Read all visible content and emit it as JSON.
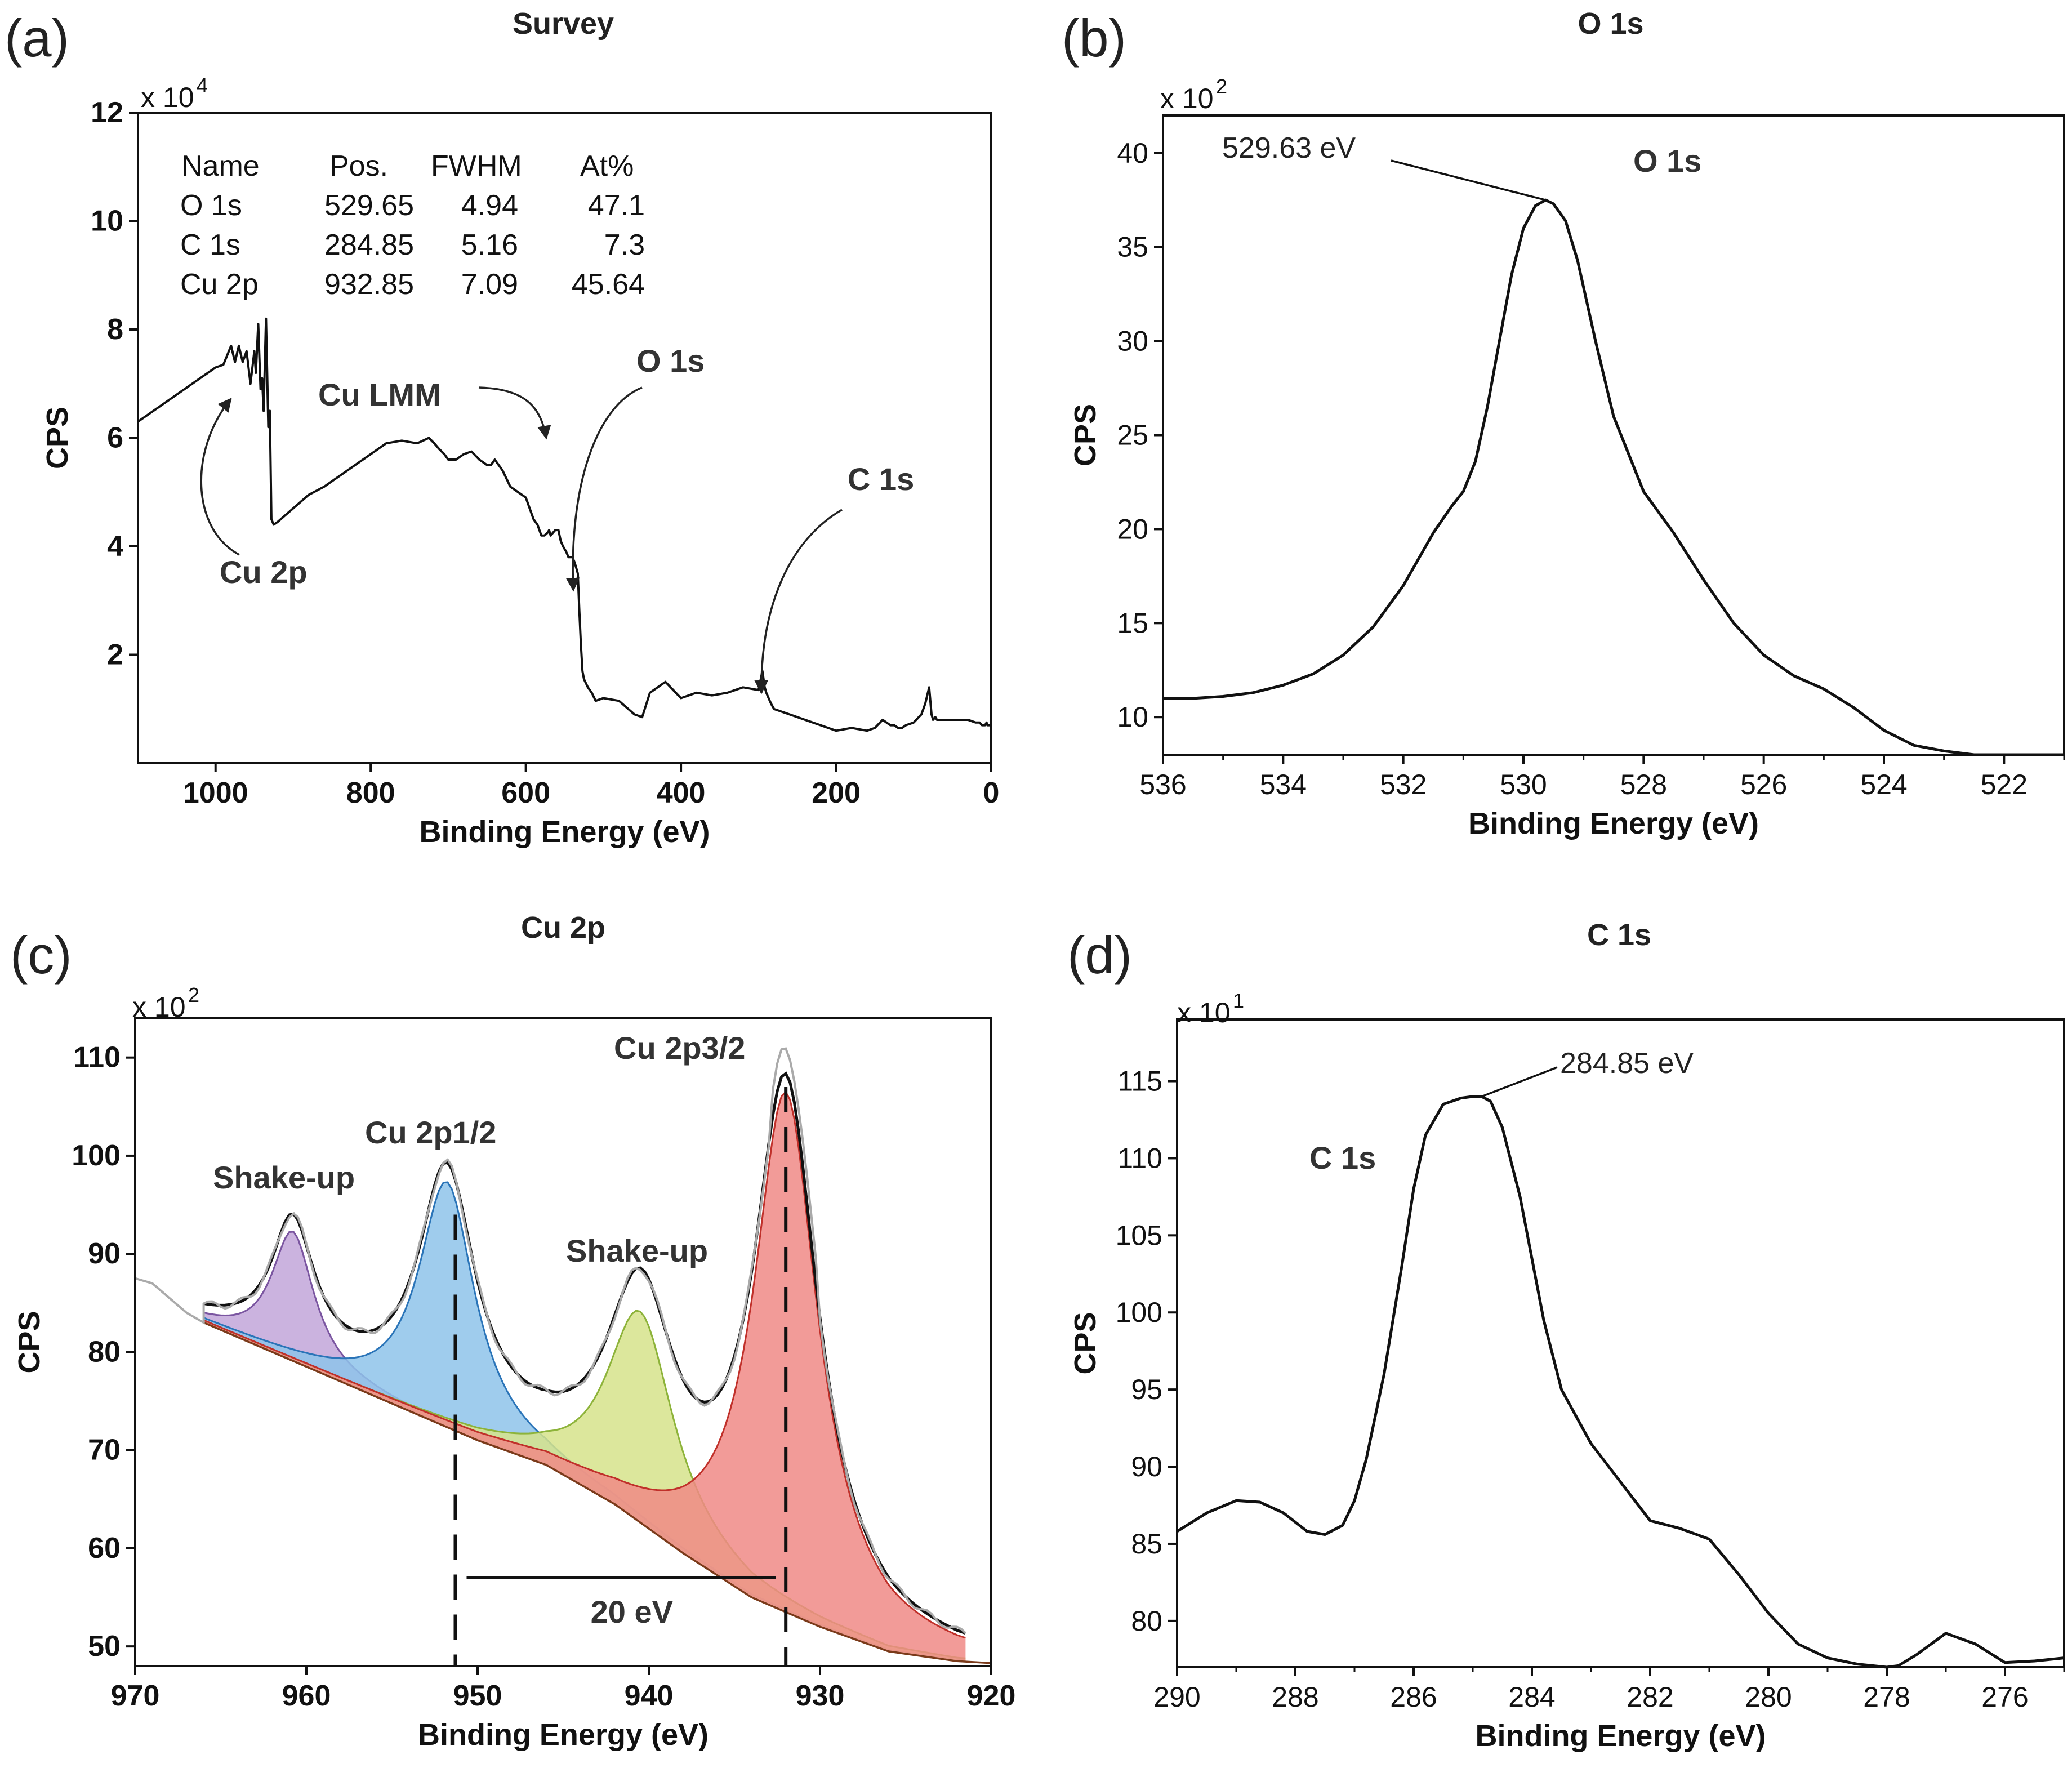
{
  "chart_data": [
    {
      "id": "a",
      "panel_label": "(a)",
      "type": "line",
      "title": "Survey",
      "xlabel": "Binding Energy (eV)",
      "ylabel": "CPS",
      "multiplier": {
        "base": "x 10",
        "exp": "4"
      },
      "xlim": [
        1100,
        0
      ],
      "ylim": [
        0,
        12
      ],
      "xticks": [
        1000,
        800,
        600,
        400,
        200,
        0
      ],
      "yticks": [
        2,
        4,
        6,
        8,
        10,
        12
      ],
      "table": {
        "headers": [
          "Name",
          "Pos.",
          "FWHM",
          "At%"
        ],
        "rows": [
          [
            "O 1s",
            "529.65",
            "4.94",
            "47.1"
          ],
          [
            "C 1s",
            "284.85",
            "5.16",
            "7.3"
          ],
          [
            "Cu 2p",
            "932.85",
            "7.09",
            "45.64"
          ]
        ]
      },
      "annotations": [
        {
          "label": "Cu LMM",
          "x": 568,
          "y": 6.1
        },
        {
          "label": "O 1s",
          "x": 530,
          "y": 3.2
        },
        {
          "label": "C 1s",
          "x": 285,
          "y": 1.3
        },
        {
          "label": "Cu 2p",
          "x": 960,
          "y": 6.7
        }
      ],
      "series": [
        {
          "name": "Survey",
          "x": [
            1100,
            1080,
            1060,
            1040,
            1020,
            1000,
            990,
            980,
            975,
            970,
            965,
            960,
            955,
            950,
            948,
            945,
            942,
            940,
            938,
            935,
            932,
            930,
            928,
            925,
            920,
            900,
            880,
            860,
            840,
            820,
            800,
            780,
            760,
            740,
            725,
            718,
            712,
            705,
            700,
            690,
            680,
            670,
            660,
            650,
            645,
            640,
            630,
            620,
            610,
            600,
            590,
            585,
            580,
            576,
            572,
            570,
            568,
            565,
            562,
            558,
            555,
            552,
            548,
            545,
            540,
            537,
            535,
            533,
            531,
            529,
            527,
            525,
            520,
            515,
            510,
            500,
            480,
            460,
            450,
            440,
            420,
            400,
            380,
            360,
            340,
            320,
            300,
            295,
            292,
            290,
            287,
            284,
            280,
            270,
            260,
            240,
            220,
            200,
            180,
            160,
            150,
            140,
            135,
            130,
            125,
            120,
            115,
            110,
            100,
            90,
            85,
            80,
            77,
            75,
            72,
            70,
            65,
            60,
            50,
            40,
            30,
            20,
            15,
            12,
            10,
            8,
            6,
            5,
            3,
            0
          ],
          "y": [
            6.3,
            6.5,
            6.7,
            6.9,
            7.1,
            7.3,
            7.35,
            7.7,
            7.4,
            7.7,
            7.4,
            7.6,
            7.0,
            7.6,
            7.2,
            8.1,
            6.9,
            7.1,
            6.5,
            8.2,
            6.2,
            6.5,
            4.5,
            4.4,
            4.45,
            4.7,
            4.95,
            5.1,
            5.3,
            5.5,
            5.7,
            5.9,
            5.95,
            5.9,
            6.0,
            5.9,
            5.8,
            5.7,
            5.6,
            5.6,
            5.7,
            5.75,
            5.6,
            5.5,
            5.5,
            5.6,
            5.4,
            5.1,
            5.0,
            4.9,
            4.5,
            4.4,
            4.2,
            4.2,
            4.25,
            4.3,
            4.2,
            4.25,
            4.3,
            4.3,
            4.1,
            4.0,
            3.9,
            3.8,
            3.8,
            3.7,
            3.6,
            3.5,
            2.8,
            2.2,
            1.7,
            1.55,
            1.4,
            1.3,
            1.15,
            1.2,
            1.15,
            0.9,
            0.85,
            1.3,
            1.5,
            1.2,
            1.3,
            1.25,
            1.3,
            1.4,
            1.35,
            1.7,
            1.4,
            1.3,
            1.2,
            1.1,
            1.0,
            0.95,
            0.9,
            0.8,
            0.7,
            0.6,
            0.65,
            0.6,
            0.65,
            0.8,
            0.75,
            0.7,
            0.7,
            0.65,
            0.65,
            0.7,
            0.75,
            0.9,
            1.1,
            1.4,
            0.9,
            0.8,
            0.85,
            0.8,
            0.8,
            0.8,
            0.8,
            0.8,
            0.8,
            0.75,
            0.75,
            0.7,
            0.7,
            0.7,
            0.75,
            0.7,
            0.7,
            0.7
          ]
        }
      ]
    },
    {
      "id": "b",
      "panel_label": "(b)",
      "type": "line",
      "title": "O 1s",
      "xlabel": "Binding Energy (eV)",
      "ylabel": "CPS",
      "multiplier": {
        "base": "x 10",
        "exp": "2"
      },
      "xlim": [
        536,
        521
      ],
      "ylim": [
        8,
        42
      ],
      "xticks": [
        536,
        534,
        532,
        530,
        528,
        526,
        524,
        522
      ],
      "yticks": [
        10,
        15,
        20,
        25,
        30,
        35,
        40
      ],
      "peak_label": "529.63 eV",
      "peak": {
        "x": 529.63,
        "y": 37.5
      },
      "inner_label": "O 1s",
      "series": [
        {
          "name": "O 1s",
          "x": [
            536,
            535.5,
            535,
            534.5,
            534,
            533.5,
            533,
            532.5,
            532,
            531.5,
            531.2,
            531,
            530.8,
            530.6,
            530.4,
            530.2,
            530,
            529.8,
            529.63,
            529.5,
            529.3,
            529.1,
            528.8,
            528.5,
            528,
            527.5,
            527,
            526.5,
            526,
            525.5,
            525,
            524.5,
            524,
            523.5,
            523,
            522.5,
            522,
            521.5,
            521
          ],
          "y": [
            11.0,
            11.0,
            11.1,
            11.3,
            11.7,
            12.3,
            13.3,
            14.8,
            17.0,
            19.8,
            21.2,
            22.0,
            23.6,
            26.5,
            30.0,
            33.5,
            36.0,
            37.2,
            37.5,
            37.3,
            36.4,
            34.3,
            30.0,
            26.0,
            22.0,
            19.8,
            17.3,
            15.0,
            13.3,
            12.2,
            11.5,
            10.5,
            9.3,
            8.5,
            8.2,
            8.0,
            8.0,
            8.0,
            8.0
          ]
        }
      ]
    },
    {
      "id": "c",
      "panel_label": "(c)",
      "type": "area",
      "title": "Cu 2p",
      "xlabel": "Binding Energy (eV)",
      "ylabel": "CPS",
      "multiplier": {
        "base": "x 10",
        "exp": "2"
      },
      "xlim": [
        970,
        920
      ],
      "ylim": [
        48,
        114
      ],
      "xticks": [
        970,
        960,
        950,
        940,
        930,
        920
      ],
      "yticks": [
        50,
        60,
        70,
        80,
        90,
        100,
        110
      ],
      "labels": [
        {
          "text": "Shake-up",
          "x": 962,
          "y": 95
        },
        {
          "text": "Cu 2p1/2",
          "x": 952,
          "y": 99
        },
        {
          "text": "Shake-up",
          "x": 941,
          "y": 88
        },
        {
          "text": "Cu 2p3/2",
          "x": 932,
          "y": 112
        }
      ],
      "splitting": {
        "text": "20 eV",
        "from": 951.3,
        "to": 932.0,
        "y": 57
      },
      "background": {
        "x": [
          966,
          962,
          958,
          954,
          950,
          946,
          942,
          938,
          934,
          930,
          926,
          922,
          920
        ],
        "y": [
          83,
          80,
          77,
          74,
          71,
          68.5,
          64.5,
          59.5,
          55,
          52,
          49.5,
          48.5,
          48.3
        ]
      },
      "components": [
        {
          "name": "Shake-up 961",
          "center": 960.8,
          "height": 13.2,
          "width": 1.5,
          "color": "#c2a6d9",
          "edge": "#7a55a0"
        },
        {
          "name": "Cu 2p1/2",
          "center": 951.8,
          "height": 25.0,
          "width": 2.0,
          "color": "#8ec3ea",
          "edge": "#2a74b8"
        },
        {
          "name": "Shake-up 941",
          "center": 940.5,
          "height": 21.5,
          "width": 2.4,
          "color": "#d6e38b",
          "edge": "#8db33a"
        },
        {
          "name": "Cu 2p3/2",
          "center": 932.0,
          "height": 53.0,
          "width": 2.3,
          "color": "#f08a86",
          "edge": "#c0302a"
        }
      ],
      "raw_grey": {
        "x": [
          970,
          969,
          968,
          967,
          966
        ],
        "y": [
          87.5,
          87,
          85.5,
          84,
          83
        ]
      }
    },
    {
      "id": "d",
      "panel_label": "(d)",
      "type": "line",
      "title": "C 1s",
      "xlabel": "Binding Energy (eV)",
      "ylabel": "CPS",
      "multiplier": {
        "base": "x 10",
        "exp": "1"
      },
      "xlim": [
        290,
        275
      ],
      "ylim": [
        77,
        119
      ],
      "xticks": [
        290,
        288,
        286,
        284,
        282,
        280,
        278,
        276
      ],
      "yticks": [
        80,
        85,
        90,
        95,
        100,
        105,
        110,
        115
      ],
      "peak_label": "284.85 eV",
      "peak": {
        "x": 284.85,
        "y": 114
      },
      "inner_label": "C 1s",
      "series": [
        {
          "name": "C 1s",
          "x": [
            290,
            289.5,
            289,
            288.6,
            288.2,
            287.8,
            287.5,
            287.2,
            287,
            286.8,
            286.5,
            286.2,
            286,
            285.8,
            285.5,
            285.2,
            285,
            284.85,
            284.7,
            284.5,
            284.2,
            283.8,
            283.5,
            283,
            282.5,
            282,
            281.5,
            281,
            280.5,
            280,
            279.5,
            279,
            278.5,
            278,
            277.8,
            277.5,
            277,
            276.5,
            276,
            275.5,
            275
          ],
          "y": [
            85.8,
            87.0,
            87.8,
            87.7,
            87.0,
            85.8,
            85.6,
            86.2,
            87.8,
            90.5,
            96.0,
            103.0,
            108.0,
            111.5,
            113.5,
            113.9,
            114.0,
            114.0,
            113.7,
            112.0,
            107.5,
            99.5,
            95.0,
            91.5,
            89.0,
            86.5,
            86.0,
            85.3,
            83.0,
            80.5,
            78.5,
            77.6,
            77.2,
            77.0,
            77.1,
            77.8,
            79.2,
            78.5,
            77.3,
            77.4,
            77.6
          ]
        }
      ]
    }
  ]
}
